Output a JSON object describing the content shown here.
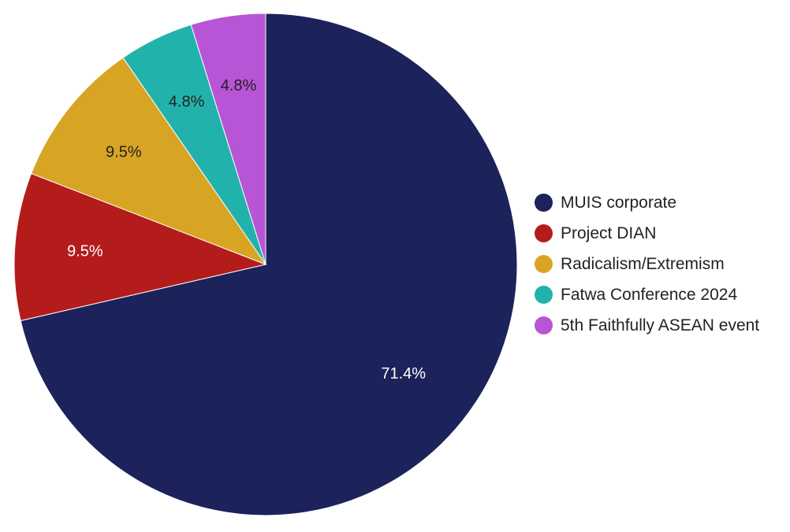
{
  "chart_data": {
    "type": "pie",
    "title": "",
    "start_angle_deg": 0,
    "direction": "clockwise",
    "slices": [
      {
        "label": "MUIS corporate",
        "value": 71.4,
        "display": "71.4%",
        "color": "#1c225a",
        "label_color": "#ffffff"
      },
      {
        "label": "Project DIAN",
        "value": 9.5,
        "display": "9.5%",
        "color": "#b41c1c",
        "label_color": "#ffffff"
      },
      {
        "label": "Radicalism/Extremism",
        "value": 9.5,
        "display": "9.5%",
        "color": "#d8a424",
        "label_color": "#222222"
      },
      {
        "label": "Fatwa Conference 2024",
        "value": 4.8,
        "display": "4.8%",
        "color": "#22b2ac",
        "label_color": "#222222"
      },
      {
        "label": "5th Faithfully ASEAN event",
        "value": 4.8,
        "display": "4.8%",
        "color": "#b854d6",
        "label_color": "#222222"
      }
    ],
    "legend": {
      "position": "right"
    }
  }
}
